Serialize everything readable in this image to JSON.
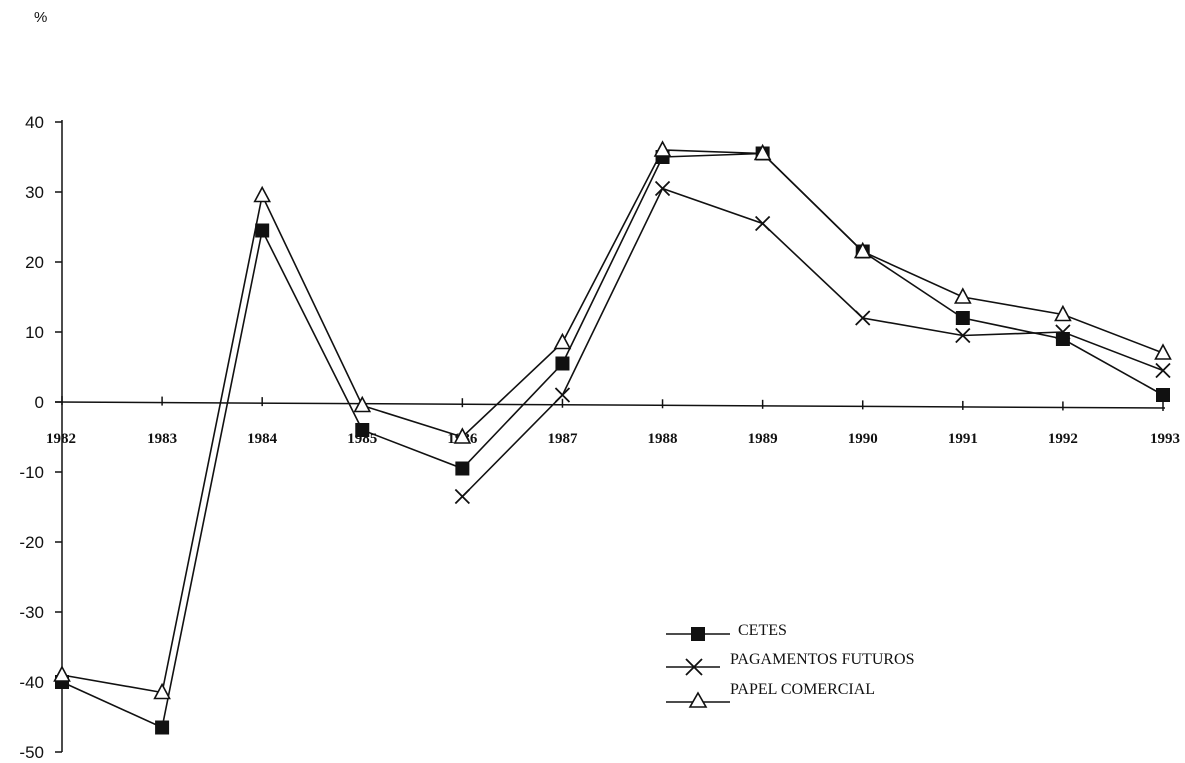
{
  "chart_data": {
    "type": "line",
    "unit_label": "%",
    "categories": [
      "1982",
      "1983",
      "1984",
      "1985",
      "1986",
      "1987",
      "1988",
      "1989",
      "1990",
      "1991",
      "1992",
      "1993"
    ],
    "y_ticks": [
      "40",
      "30",
      "20",
      "10",
      "0",
      "-10",
      "-20",
      "-30",
      "-40",
      "-50"
    ],
    "ylim": [
      -50,
      40
    ],
    "grid": false,
    "legend_position": "bottom-right",
    "series": [
      {
        "name": "CETES",
        "marker": "filled-square",
        "values": [
          -40,
          -46.5,
          24.5,
          -4,
          -9.5,
          5.5,
          35,
          35.5,
          21.5,
          12,
          9,
          1
        ]
      },
      {
        "name": "PAGAMENTOS FUTUROS",
        "marker": "x",
        "values": [
          null,
          null,
          null,
          null,
          -13.5,
          1,
          30.5,
          25.5,
          12,
          9.5,
          10,
          4.5
        ]
      },
      {
        "name": "PAPEL COMERCIAL",
        "marker": "open-triangle",
        "values": [
          -39,
          -41.5,
          29.5,
          -0.5,
          -5,
          8.5,
          36,
          35.5,
          21.5,
          15,
          12.5,
          7
        ]
      }
    ]
  }
}
